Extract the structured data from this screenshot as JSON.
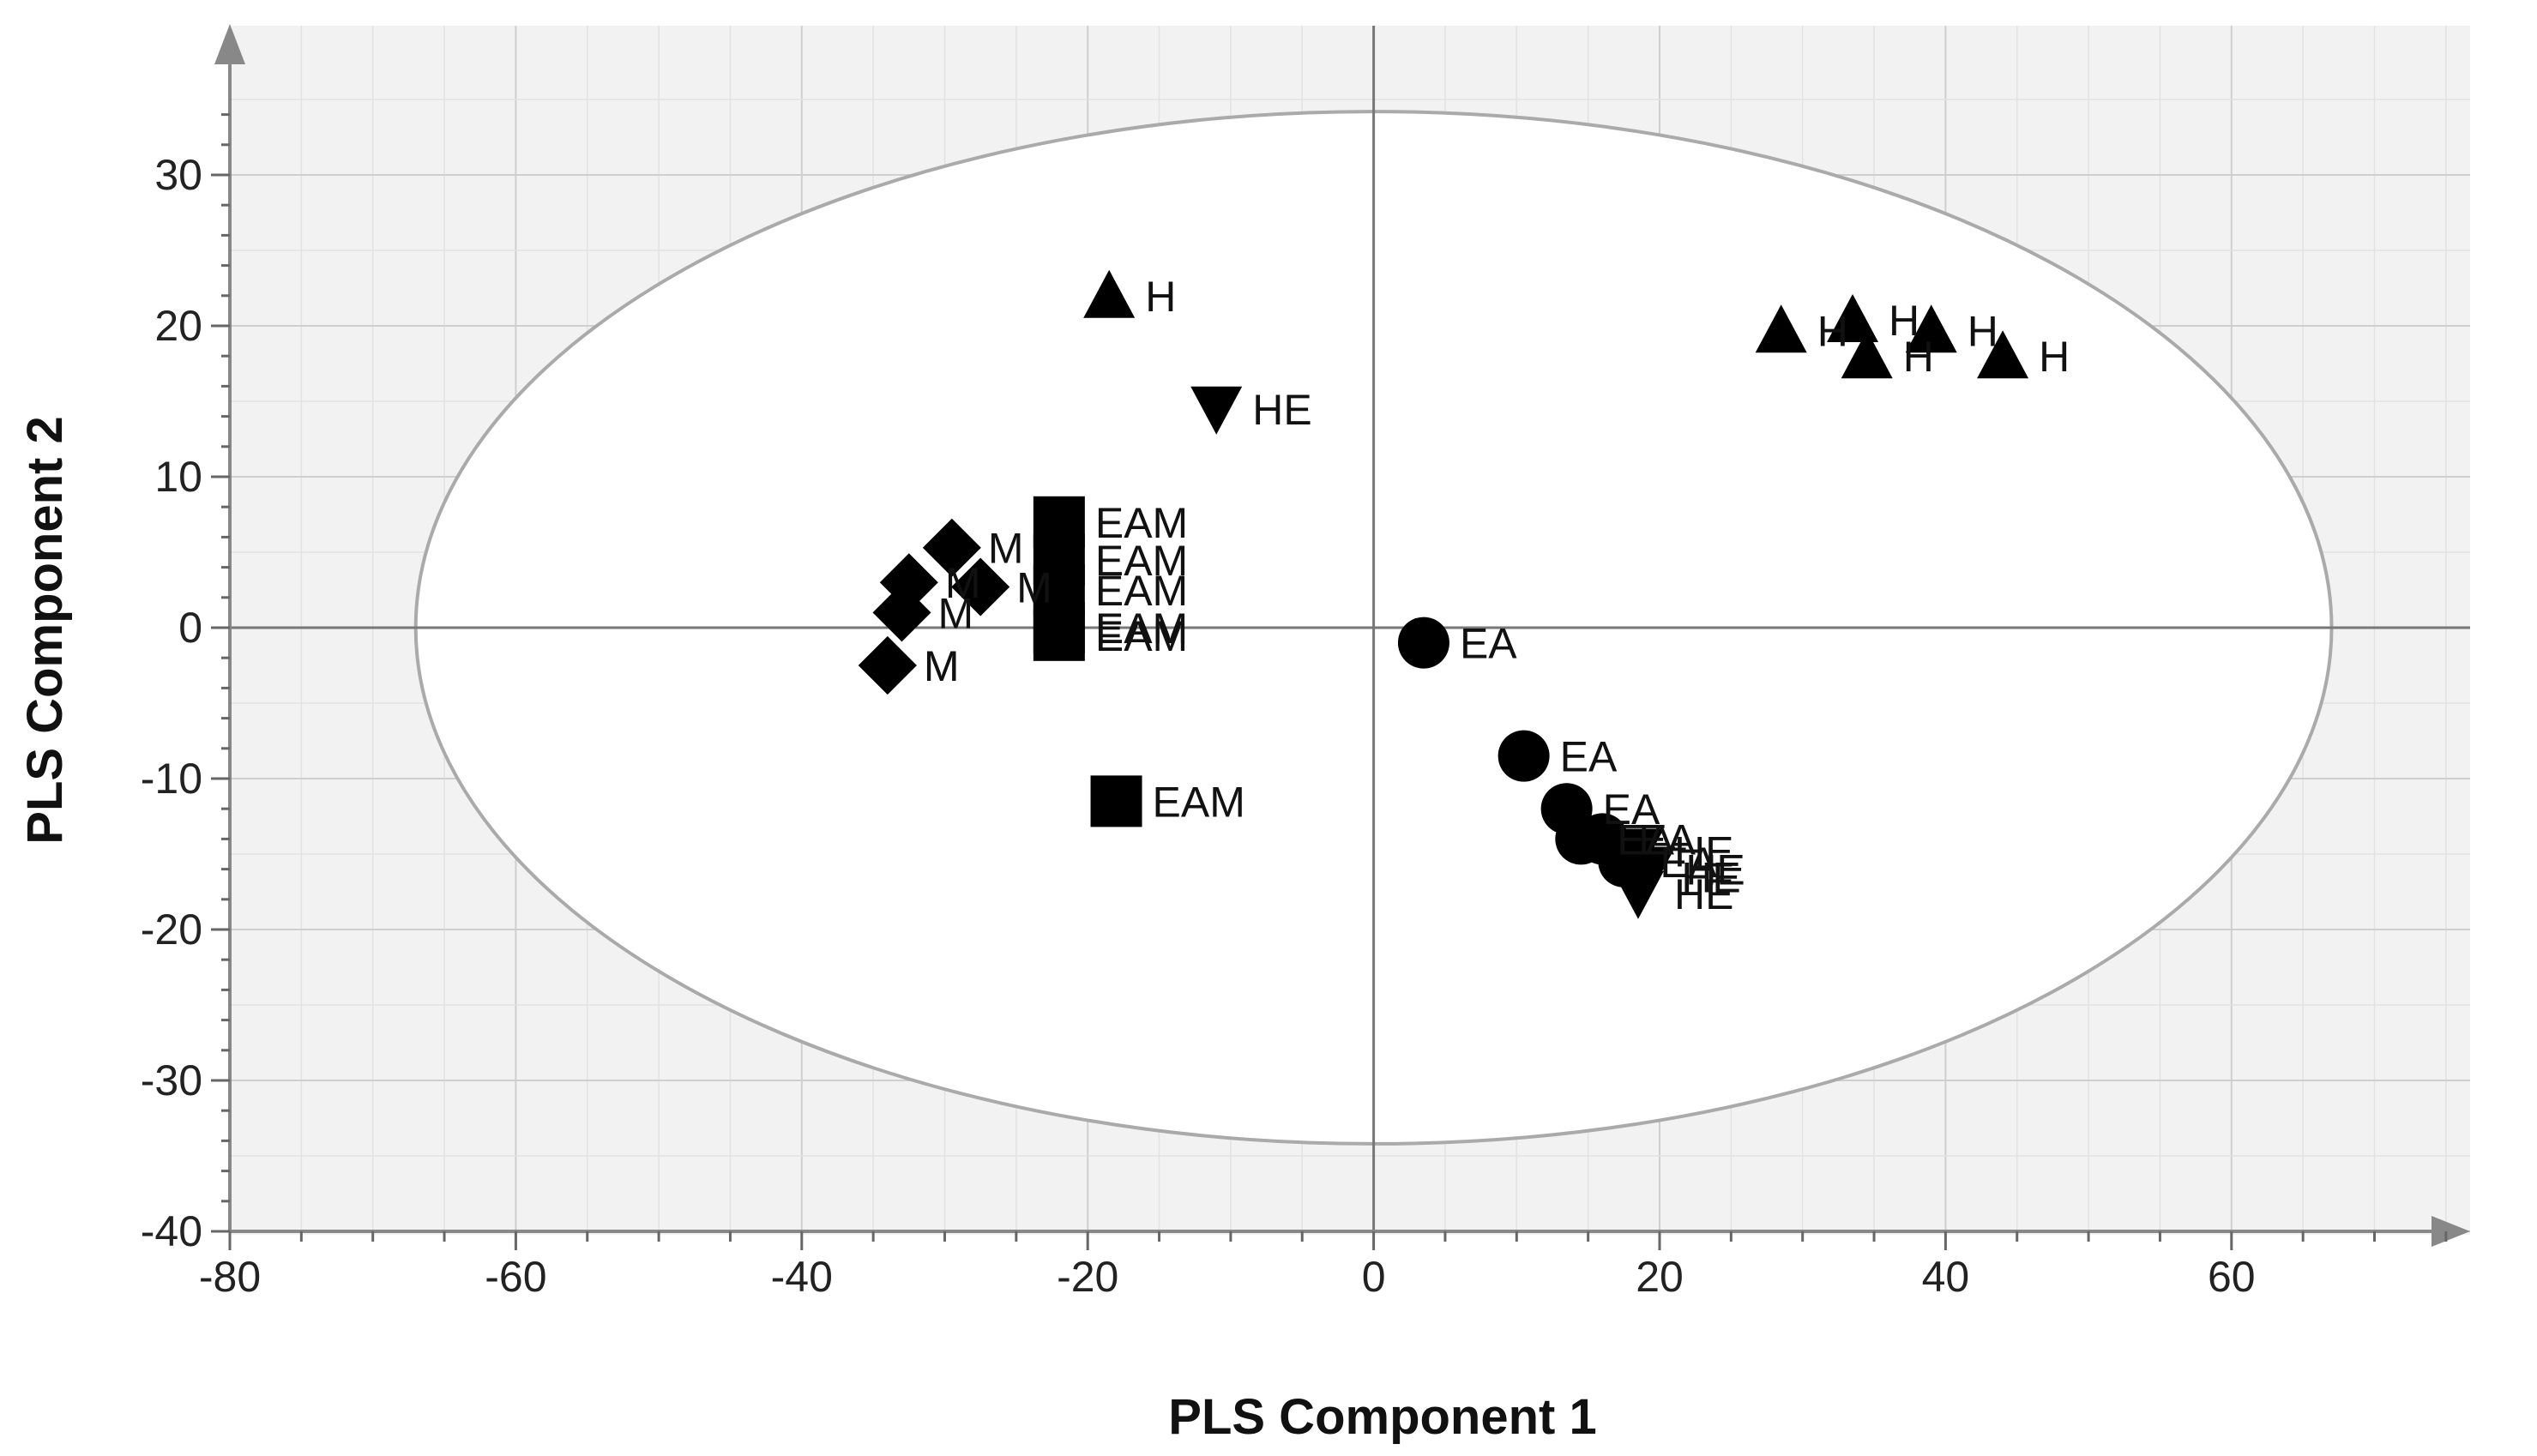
{
  "chart_data": {
    "type": "scatter",
    "title": "",
    "xlabel": "PLS Component 1",
    "ylabel": "PLS Component 2",
    "xlim": [
      -80,
      76
    ],
    "ylim": [
      -40,
      38
    ],
    "xticks": [
      -80,
      -60,
      -40,
      -20,
      0,
      20,
      40,
      60
    ],
    "yticks": [
      -40,
      -30,
      -20,
      -10,
      0,
      10,
      20,
      30
    ],
    "grid": true,
    "confidence_ellipse": {
      "center": [
        0,
        0
      ],
      "semi_axis_x": 67,
      "semi_axis_y": 34.2
    },
    "series": [
      {
        "name": "H",
        "marker": "triangle-up",
        "points": [
          {
            "x": -18.5,
            "y": 22.0,
            "label": "H"
          },
          {
            "x": 28.5,
            "y": 19.7,
            "label": "H"
          },
          {
            "x": 33.5,
            "y": 20.4,
            "label": "H"
          },
          {
            "x": 34.5,
            "y": 18.0,
            "label": "H"
          },
          {
            "x": 39.0,
            "y": 19.7,
            "label": "H"
          },
          {
            "x": 44.0,
            "y": 18.0,
            "label": "H"
          }
        ]
      },
      {
        "name": "HE",
        "marker": "triangle-down",
        "points": [
          {
            "x": -11.0,
            "y": 14.5,
            "label": "HE"
          },
          {
            "x": 18.5,
            "y": -14.8,
            "label": "HE"
          },
          {
            "x": 19.3,
            "y": -16.0,
            "label": "HE"
          },
          {
            "x": 19.0,
            "y": -16.5,
            "label": "HE"
          },
          {
            "x": 18.5,
            "y": -17.6,
            "label": "HE"
          }
        ]
      },
      {
        "name": "EAM",
        "marker": "square",
        "points": [
          {
            "x": -22.0,
            "y": 7.0,
            "label": "EAM"
          },
          {
            "x": -22.0,
            "y": 4.5,
            "label": "EAM"
          },
          {
            "x": -22.0,
            "y": 2.5,
            "label": "EAM"
          },
          {
            "x": -22.0,
            "y": 0.0,
            "label": "EAM"
          },
          {
            "x": -22.0,
            "y": -0.5,
            "label": "EAM"
          },
          {
            "x": -18.0,
            "y": -11.5,
            "label": "EAM"
          }
        ]
      },
      {
        "name": "M",
        "marker": "diamond",
        "points": [
          {
            "x": -29.5,
            "y": 5.3,
            "label": "M"
          },
          {
            "x": -32.5,
            "y": 3.0,
            "label": "M"
          },
          {
            "x": -27.5,
            "y": 2.7,
            "label": "M"
          },
          {
            "x": -33.0,
            "y": 1.0,
            "label": "M"
          },
          {
            "x": -34.0,
            "y": -2.5,
            "label": "M"
          },
          {
            "x": -34.0,
            "y": -2.5,
            "label": "M"
          }
        ]
      },
      {
        "name": "EA",
        "marker": "circle",
        "points": [
          {
            "x": 3.5,
            "y": -1.0,
            "label": "EA"
          },
          {
            "x": 10.5,
            "y": -8.5,
            "label": "EA"
          },
          {
            "x": 13.5,
            "y": -12.0,
            "label": "EA"
          },
          {
            "x": 14.5,
            "y": -14.0,
            "label": "EA"
          },
          {
            "x": 16.0,
            "y": -14.0,
            "label": "EA"
          },
          {
            "x": 17.5,
            "y": -15.5,
            "label": "EA"
          }
        ]
      }
    ]
  }
}
